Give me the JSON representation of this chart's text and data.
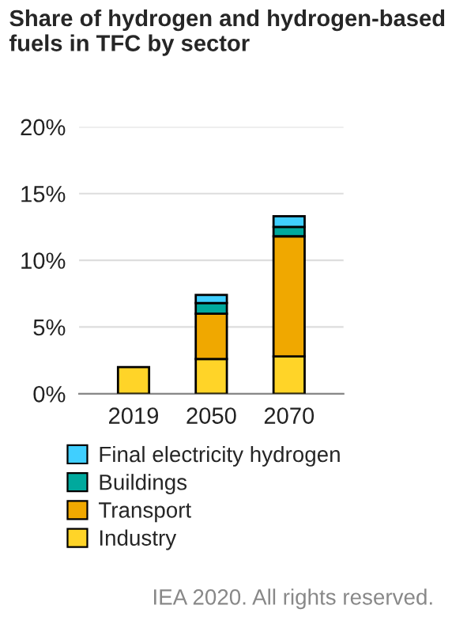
{
  "chart_data": {
    "type": "bar",
    "title": "Share of hydrogen and hydrogen-based fuels in TFC by sector",
    "stacked": true,
    "categories": [
      "2019",
      "2050",
      "2070"
    ],
    "series": [
      {
        "name": "Industry",
        "color": "#ffd428",
        "values": [
          2.0,
          2.6,
          2.8
        ]
      },
      {
        "name": "Transport",
        "color": "#f0a800",
        "values": [
          null,
          3.4,
          9.0
        ]
      },
      {
        "name": "Buildings",
        "color": "#00a99d",
        "values": [
          null,
          0.8,
          0.7
        ]
      },
      {
        "name": "Final electricity hydrogen",
        "color": "#40cfff",
        "values": [
          null,
          0.6,
          0.8
        ]
      }
    ],
    "ylim": [
      0,
      20
    ],
    "yticks": [
      {
        "value": 0,
        "label": "0%"
      },
      {
        "value": 5,
        "label": "5%"
      },
      {
        "value": 10,
        "label": "10%"
      },
      {
        "value": 15,
        "label": "15%"
      },
      {
        "value": 20,
        "label": "20%"
      }
    ],
    "grid": "y",
    "legend": "bottom",
    "annotations": [
      "IEA 2020. All rights reserved."
    ]
  }
}
